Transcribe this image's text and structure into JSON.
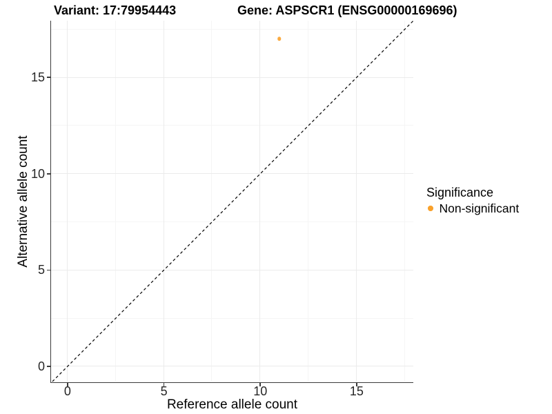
{
  "figure": {
    "title_left": "Variant: 17:79954443",
    "title_right": "Gene: ASPSCR1 (ENSG00000169696)"
  },
  "chart_data": {
    "type": "scatter",
    "title": "Variant: 17:79954443  /  Gene: ASPSCR1 (ENSG00000169696)",
    "xlabel": "Reference allele count",
    "ylabel": "Alternative allele count",
    "xlim": [
      -0.857,
      17.94
    ],
    "ylim": [
      -0.79,
      17.943
    ],
    "x_major_ticks": [
      0,
      5,
      10,
      15
    ],
    "y_major_ticks": [
      0,
      5,
      10,
      15
    ],
    "x_minor_ticks": [
      2.5,
      7.5,
      12.5,
      17.5
    ],
    "y_minor_ticks": [
      2.5,
      7.5,
      12.5,
      17.5
    ],
    "grid": "major+minor",
    "identity_line": {
      "type": "y=x",
      "style": "dashed",
      "color": "#000000"
    },
    "series": [
      {
        "name": "Non-significant",
        "color": "#F9A12B",
        "points": [
          {
            "x": 11,
            "y": 17
          }
        ]
      }
    ],
    "legend": {
      "title": "Significance",
      "position": "right",
      "items": [
        {
          "label": "Non-significant",
          "color": "#F9A12B"
        }
      ]
    }
  },
  "colors": {
    "axis_line": "#3a3a3a",
    "tick_label": "#262626",
    "grid_major": "#ebebeb",
    "grid_minor": "#f5f5f5",
    "background": "#ffffff"
  }
}
